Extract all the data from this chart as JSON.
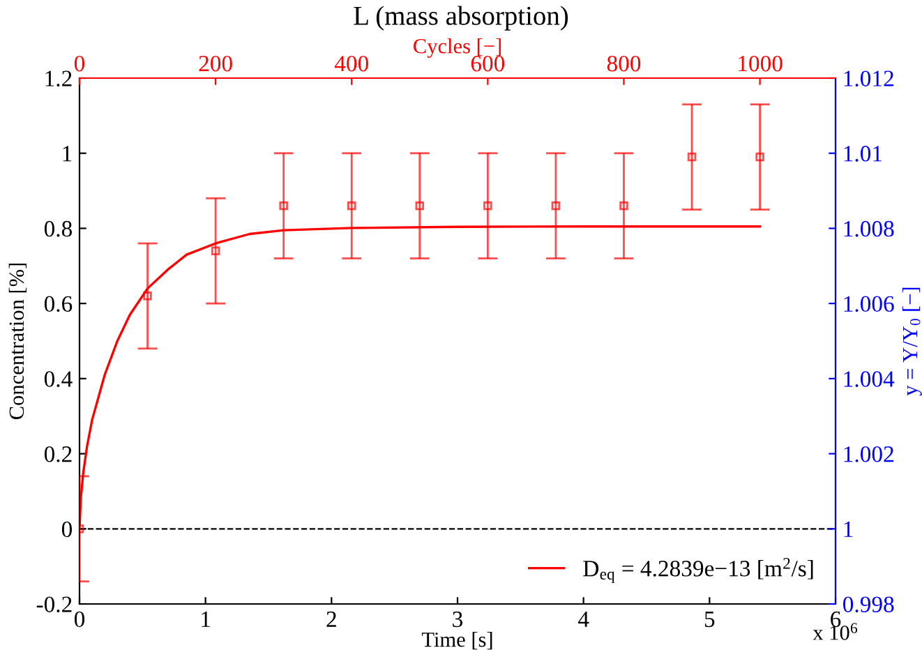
{
  "chart_data": {
    "type": "scatter",
    "title": "L (mass absorption)",
    "xlabel": "Time [s]",
    "ylabel": "Concentration [%]",
    "y2label": "y = Y/Y$_{0}$ [−]",
    "x2label": "Cycles [−]",
    "xlim": [
      0,
      6
    ],
    "xticks": [
      0,
      1,
      2,
      3,
      4,
      5,
      6
    ],
    "ylim": [
      -0.2,
      1.2
    ],
    "yticks": [
      -0.2,
      0,
      0.2,
      0.4,
      0.6,
      0.8,
      1,
      1.2
    ],
    "y2lim": [
      0.998,
      1.012
    ],
    "y2ticks": [
      0.998,
      1,
      1.002,
      1.004,
      1.006,
      1.008,
      1.01,
      1.012
    ],
    "x2lim": [
      0,
      1111.1
    ],
    "x2ticks": [
      0,
      200,
      400,
      600,
      800,
      1000
    ],
    "series": [
      {
        "color": "#ff0000",
        "marker": "square",
        "x": [
          0,
          0.54,
          1.08,
          1.62,
          2.16,
          2.7,
          3.24,
          3.78,
          4.32,
          4.86,
          5.4
        ],
        "values": [
          0,
          0.62,
          0.74,
          0.86,
          0.86,
          0.86,
          0.86,
          0.86,
          0.86,
          0.99,
          0.99
        ],
        "errors": [
          0.14,
          0.14,
          0.14,
          0.14,
          0.14,
          0.14,
          0.14,
          0.14,
          0.14,
          0.14,
          0.14
        ]
      },
      {
        "type": "line",
        "name": "D$_{eq}$ = 4.2839e−13 [m$^{2}$/s]",
        "color": "#ff0000",
        "line_style": "solid",
        "x": [
          0,
          0.01,
          0.03,
          0.06,
          0.1,
          0.2,
          0.3,
          0.4,
          0.54,
          0.7,
          0.85,
          1.08,
          1.35,
          1.62,
          2.16,
          3,
          4,
          5.4
        ],
        "values": [
          0,
          0.08,
          0.15,
          0.22,
          0.29,
          0.41,
          0.5,
          0.57,
          0.64,
          0.69,
          0.73,
          0.76,
          0.785,
          0.795,
          0.801,
          0.804,
          0.805,
          0.805
        ]
      }
    ],
    "ref_lines": [
      {
        "axis": "y",
        "value": 0,
        "color": "#000000",
        "line_style": "dashed"
      }
    ],
    "annotations": [
      "x 10$^{6}$"
    ],
    "legend": "bottom right",
    "grid": false
  }
}
